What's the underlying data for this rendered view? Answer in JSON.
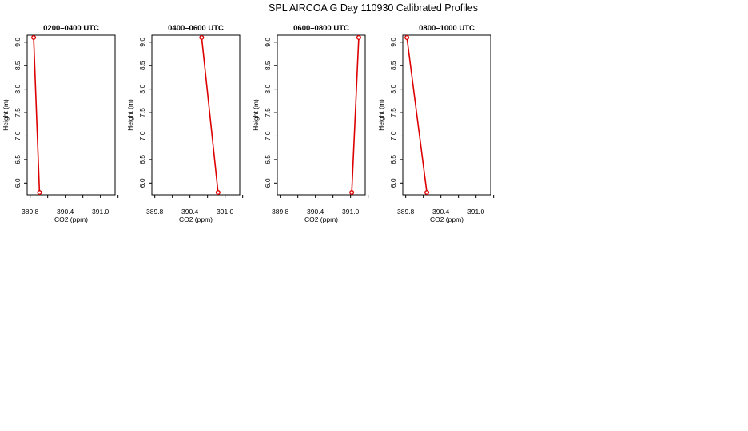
{
  "figure_title": "SPL AIRCOA G  Day 110930  Calibrated Profiles",
  "colors": {
    "series": "#dd0000",
    "axis": "#000000"
  },
  "chart_data": [
    {
      "type": "line",
      "title": "0200–0400 UTC",
      "xlabel": "CO2 (ppm)",
      "ylabel": "Height (m)",
      "xlim": [
        389.75,
        391.25
      ],
      "ylim": [
        5.75,
        9.15
      ],
      "xticks": [
        389.8,
        390.1,
        390.4,
        390.7,
        391.0,
        391.3
      ],
      "xtick_labels": [
        "389.8",
        "",
        "390.4",
        "",
        "391.0",
        ""
      ],
      "yticks": [
        6.0,
        6.5,
        7.0,
        7.5,
        8.0,
        8.5,
        9.0
      ],
      "ytick_labels": [
        "6.0",
        "6.5",
        "7.0",
        "7.5",
        "8.0",
        "8.5",
        "9.0"
      ],
      "points": [
        {
          "x": 389.86,
          "y": 9.1
        },
        {
          "x": 389.96,
          "y": 5.8
        }
      ]
    },
    {
      "type": "line",
      "title": "0400–0600 UTC",
      "xlabel": "CO2 (ppm)",
      "ylabel": "Height (m)",
      "xlim": [
        389.75,
        391.25
      ],
      "ylim": [
        5.75,
        9.15
      ],
      "xticks": [
        389.8,
        390.1,
        390.4,
        390.7,
        391.0,
        391.3
      ],
      "xtick_labels": [
        "389.8",
        "",
        "390.4",
        "",
        "391.0",
        ""
      ],
      "yticks": [
        6.0,
        6.5,
        7.0,
        7.5,
        8.0,
        8.5,
        9.0
      ],
      "ytick_labels": [
        "6.0",
        "6.5",
        "7.0",
        "7.5",
        "8.0",
        "8.5",
        "9.0"
      ],
      "points": [
        {
          "x": 390.6,
          "y": 9.1
        },
        {
          "x": 390.88,
          "y": 5.8
        }
      ]
    },
    {
      "type": "line",
      "title": "0600–0800 UTC",
      "xlabel": "CO2 (ppm)",
      "ylabel": "Height (m)",
      "xlim": [
        389.75,
        391.25
      ],
      "ylim": [
        5.75,
        9.15
      ],
      "xticks": [
        389.8,
        390.1,
        390.4,
        390.7,
        391.0,
        391.3
      ],
      "xtick_labels": [
        "389.8",
        "",
        "390.4",
        "",
        "391.0",
        ""
      ],
      "yticks": [
        6.0,
        6.5,
        7.0,
        7.5,
        8.0,
        8.5,
        9.0
      ],
      "ytick_labels": [
        "6.0",
        "6.5",
        "7.0",
        "7.5",
        "8.0",
        "8.5",
        "9.0"
      ],
      "points": [
        {
          "x": 391.14,
          "y": 9.1
        },
        {
          "x": 391.02,
          "y": 5.8
        }
      ]
    },
    {
      "type": "line",
      "title": "0800–1000 UTC",
      "xlabel": "CO2 (ppm)",
      "ylabel": "Height (m)",
      "xlim": [
        389.75,
        391.25
      ],
      "ylim": [
        5.75,
        9.15
      ],
      "xticks": [
        389.8,
        390.1,
        390.4,
        390.7,
        391.0,
        391.3
      ],
      "xtick_labels": [
        "389.8",
        "",
        "390.4",
        "",
        "391.0",
        ""
      ],
      "yticks": [
        6.0,
        6.5,
        7.0,
        7.5,
        8.0,
        8.5,
        9.0
      ],
      "ytick_labels": [
        "6.0",
        "6.5",
        "7.0",
        "7.5",
        "8.0",
        "8.5",
        "9.0"
      ],
      "points": [
        {
          "x": 389.82,
          "y": 9.1
        },
        {
          "x": 390.16,
          "y": 5.8
        }
      ]
    }
  ]
}
